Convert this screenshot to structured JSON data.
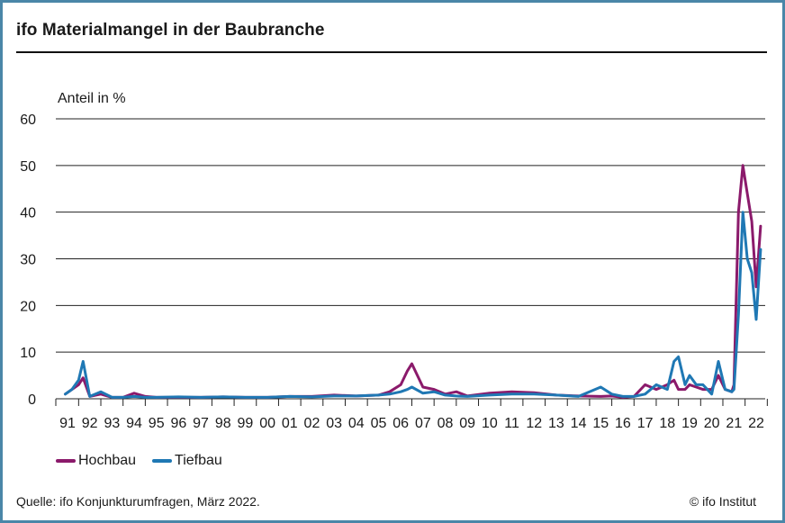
{
  "title": "ifo Materialmangel in der Baubranche",
  "colors": {
    "hochbau": "#8b1a6b",
    "tiefbau": "#1f78b4",
    "frame": "#4a86a8",
    "grid": "#111111"
  },
  "legend": {
    "hochbau": "Hochbau",
    "tiefbau": "Tiefbau"
  },
  "footer": {
    "source": "Quelle: ifo Konjunkturumfragen, März 2022.",
    "copyright": "© ifo Institut"
  },
  "chart_data": {
    "type": "line",
    "title": "ifo Materialmangel in der Baubranche",
    "xlabel": "",
    "ylabel": "Anteil in %",
    "ylim": [
      0,
      60
    ],
    "yticks": [
      0,
      10,
      20,
      30,
      40,
      50,
      60
    ],
    "xticks": [
      "91",
      "92",
      "93",
      "94",
      "95",
      "96",
      "97",
      "98",
      "99",
      "00",
      "01",
      "02",
      "03",
      "04",
      "05",
      "06",
      "07",
      "08",
      "09",
      "10",
      "11",
      "12",
      "13",
      "14",
      "15",
      "16",
      "17",
      "18",
      "19",
      "20",
      "21",
      "22"
    ],
    "grid": true,
    "legend_position": "bottom-left",
    "x": [
      1990.9,
      1991.2,
      1991.5,
      1991.7,
      1992.0,
      1992.5,
      1993.0,
      1993.5,
      1994.0,
      1994.5,
      1995.0,
      1996.0,
      1997.0,
      1998.0,
      1999.0,
      2000.0,
      2001.0,
      2002.0,
      2003.0,
      2004.0,
      2005.0,
      2005.5,
      2006.0,
      2006.3,
      2006.5,
      2007.0,
      2007.5,
      2008.0,
      2008.5,
      2009.0,
      2010.0,
      2011.0,
      2012.0,
      2013.0,
      2014.0,
      2015.0,
      2015.5,
      2016.0,
      2016.5,
      2017.0,
      2017.5,
      2018.0,
      2018.3,
      2018.5,
      2018.8,
      2019.0,
      2019.3,
      2019.6,
      2020.0,
      2020.3,
      2020.6,
      2020.9,
      2021.0,
      2021.2,
      2021.4,
      2021.6,
      2021.8,
      2022.0,
      2022.2
    ],
    "series": [
      {
        "name": "Hochbau",
        "color": "#8b1a6b",
        "values": [
          1,
          2,
          3,
          4.5,
          0.5,
          1,
          0.3,
          0.3,
          1.2,
          0.5,
          0.3,
          0.3,
          0.3,
          0.4,
          0.3,
          0.3,
          0.5,
          0.5,
          0.8,
          0.6,
          0.8,
          1.5,
          3,
          6,
          7.5,
          2.5,
          2,
          1,
          1.5,
          0.6,
          1.2,
          1.5,
          1.3,
          0.8,
          0.6,
          0.5,
          0.6,
          0.3,
          0.5,
          3,
          2,
          3,
          4,
          2,
          2,
          3,
          2.5,
          2,
          2,
          5,
          2,
          1.5,
          3,
          40,
          50,
          44,
          38,
          24,
          37
        ]
      },
      {
        "name": "Tiefbau",
        "color": "#1f78b4",
        "values": [
          1,
          2,
          4,
          8,
          0.5,
          1.5,
          0.3,
          0.3,
          0.5,
          0.3,
          0.3,
          0.4,
          0.3,
          0.4,
          0.3,
          0.3,
          0.5,
          0.4,
          0.6,
          0.6,
          0.8,
          1,
          1.5,
          2,
          2.5,
          1.2,
          1.5,
          0.8,
          0.6,
          0.5,
          0.8,
          1,
          1,
          0.8,
          0.5,
          2.5,
          1,
          0.5,
          0.5,
          1,
          3,
          2,
          8,
          9,
          3,
          5,
          3,
          3,
          1,
          8,
          2,
          1.5,
          2,
          18,
          40,
          30,
          27,
          17,
          32
        ]
      }
    ]
  }
}
